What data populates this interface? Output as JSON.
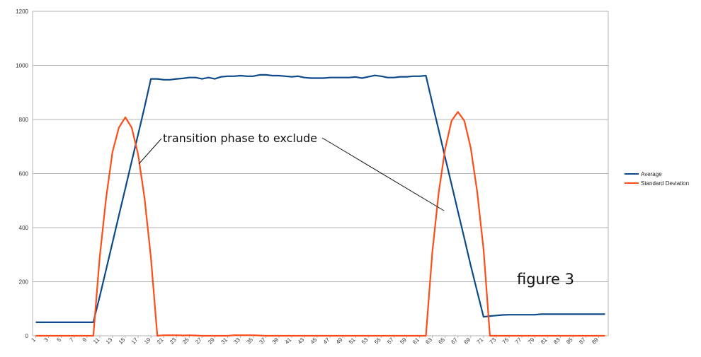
{
  "chart_data": {
    "type": "line",
    "x": [
      1,
      2,
      3,
      4,
      5,
      6,
      7,
      8,
      9,
      10,
      11,
      12,
      13,
      14,
      15,
      16,
      17,
      18,
      19,
      20,
      21,
      22,
      23,
      24,
      25,
      26,
      27,
      28,
      29,
      30,
      31,
      32,
      33,
      34,
      35,
      36,
      37,
      38,
      39,
      40,
      41,
      42,
      43,
      44,
      45,
      46,
      47,
      48,
      49,
      50,
      51,
      52,
      53,
      54,
      55,
      56,
      57,
      58,
      59,
      60,
      61,
      62,
      63,
      64,
      65,
      66,
      67,
      68,
      69,
      70,
      71,
      72,
      73,
      74,
      75,
      76,
      77,
      78,
      79,
      80,
      81,
      82,
      83,
      84,
      85,
      86,
      87,
      88,
      89,
      90
    ],
    "x_tick_labels": [
      "1",
      "3",
      "5",
      "7",
      "9",
      "11",
      "13",
      "15",
      "17",
      "19",
      "21",
      "23",
      "25",
      "27",
      "29",
      "31",
      "33",
      "35",
      "37",
      "39",
      "41",
      "43",
      "45",
      "47",
      "49",
      "51",
      "53",
      "55",
      "57",
      "59",
      "61",
      "63",
      "65",
      "67",
      "69",
      "71",
      "73",
      "75",
      "77",
      "79",
      "81",
      "83",
      "85",
      "87",
      "89"
    ],
    "ylim": [
      0,
      1200
    ],
    "y_ticks": [
      0,
      200,
      400,
      600,
      800,
      1000,
      1200
    ],
    "grid": true,
    "legend_position": "right",
    "series": [
      {
        "name": "Average",
        "color": "#0d4a8a",
        "values": [
          50,
          50,
          50,
          50,
          50,
          50,
          50,
          50,
          50,
          50,
          145,
          245,
          345,
          445,
          545,
          645,
          745,
          845,
          950,
          950,
          947,
          947,
          950,
          952,
          955,
          955,
          950,
          955,
          950,
          958,
          960,
          960,
          962,
          960,
          960,
          965,
          965,
          962,
          962,
          960,
          958,
          960,
          955,
          953,
          953,
          953,
          955,
          955,
          955,
          955,
          957,
          953,
          958,
          963,
          960,
          955,
          955,
          958,
          958,
          960,
          960,
          962,
          860,
          760,
          660,
          560,
          460,
          360,
          260,
          165,
          70,
          73,
          75,
          77,
          78,
          78,
          78,
          78,
          78,
          80,
          80,
          80,
          80,
          80,
          80,
          80,
          80,
          80,
          80,
          80
        ]
      },
      {
        "name": "Standard Deviation",
        "color": "#ff4d1a",
        "values": [
          0,
          0,
          0,
          0,
          0,
          0,
          0,
          0,
          0,
          0,
          290,
          510,
          680,
          770,
          808,
          770,
          670,
          510,
          290,
          0,
          2,
          2,
          2,
          1,
          2,
          1,
          0,
          0,
          0,
          0,
          0,
          2,
          2,
          2,
          2,
          1,
          0,
          0,
          0,
          0,
          0,
          0,
          0,
          0,
          0,
          0,
          0,
          0,
          0,
          0,
          0,
          0,
          0,
          0,
          0,
          0,
          0,
          0,
          0,
          0,
          0,
          0,
          310,
          530,
          690,
          795,
          828,
          795,
          695,
          535,
          320,
          0,
          0,
          0,
          0,
          0,
          0,
          0,
          0,
          0,
          0,
          0,
          0,
          0,
          0,
          0,
          0,
          0,
          0,
          0
        ]
      }
    ],
    "annotations": {
      "transition_text": "transition phase to exclude",
      "figure_label": "figure 3"
    }
  }
}
